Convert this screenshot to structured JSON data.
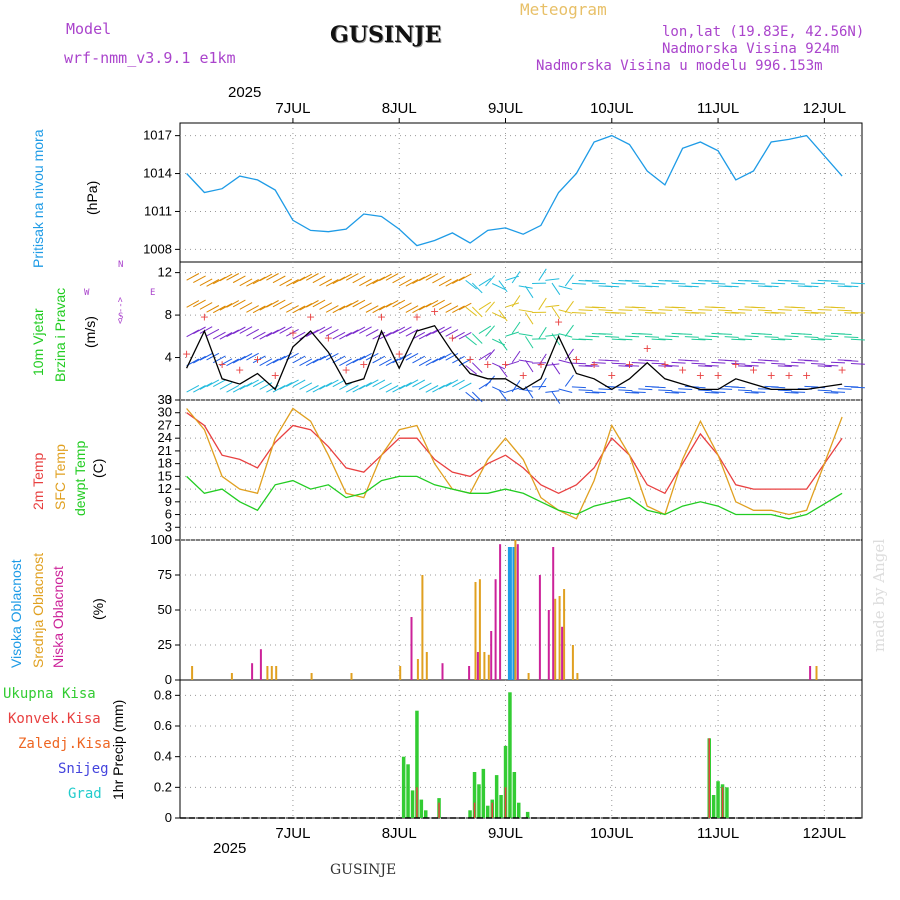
{
  "header": {
    "model_label": "Model",
    "model_name": "wrf-nmm_v3.9.1 e1km",
    "station": "GUSINJE",
    "product": "Meteogram",
    "lonlat": "lon,lat (19.83E, 42.56N)",
    "elevation": "Nadmorska Visina 924m",
    "model_elevation": "Nadmorska Visina u modelu 996.153m",
    "footer_station": "GUSINJE",
    "watermark": "made by Angel"
  },
  "colors": {
    "pressure": "#1e9be6",
    "wind_label": "#22cc22",
    "temp2m": "#e84040",
    "sfc": "#e0a020",
    "dewpt": "#22cc22",
    "high_cloud": "#1e9be6",
    "mid_cloud": "#e0a020",
    "low_cloud": "#cc2299",
    "total_precip": "#33cc33",
    "conv_precip": "#e84040",
    "freezing": "#ee6622",
    "snow": "#4444dd",
    "hail": "#22cccc",
    "compass": "#aa44cc"
  },
  "axes": {
    "year": "2025",
    "days": [
      "7JUL",
      "8JUL",
      "9JUL",
      "10JUL",
      "11JUL",
      "12JUL"
    ]
  },
  "panels": {
    "pressure": {
      "label": "Pritisak na nivou mora",
      "unit": "(hPa)"
    },
    "wind": {
      "label1": "10m Vjetar",
      "label2": "Brzina i Pravac",
      "unit": "(m/s)",
      "compass_w": "W",
      "compass_e": "E",
      "compass_top": "<--->",
      "compass_ns": "N",
      "compass_s": "S"
    },
    "temp": {
      "label1": "2m Temp",
      "label2": "SFC Temp",
      "label3": "dewpt Temp",
      "unit": "(C)"
    },
    "cloud": {
      "label1": "Visoka Oblacnost",
      "label2": "Srednja Oblacnost",
      "label3": "Niska Oblacnost",
      "unit": "(%)"
    },
    "precip": {
      "unit": "1hr Precip (mm)",
      "legend": [
        "Ukupna Kisa",
        "Konvek.Kisa",
        "Zaledj.Kisa",
        "Snijeg",
        "Grad"
      ]
    }
  },
  "chart_data": [
    {
      "type": "line",
      "title": "Pritisak na nivou mora",
      "ylabel": "(hPa)",
      "x_unit": "hours since 7JUL 00UTC",
      "ylim": [
        1007,
        1018
      ],
      "yticks": [
        1008,
        1011,
        1014,
        1017
      ],
      "series": [
        {
          "name": "Pritisak na nivou mora",
          "x": [
            -12,
            -8,
            -4,
            0,
            4,
            8,
            12,
            16,
            20,
            24,
            28,
            32,
            36,
            40,
            44,
            48,
            52,
            56,
            60,
            64,
            68,
            72,
            76,
            80,
            84,
            88,
            92,
            96,
            100,
            104,
            108,
            112,
            116,
            120,
            124,
            128,
            136
          ],
          "values": [
            1014.0,
            1012.5,
            1012.8,
            1013.8,
            1013.5,
            1012.7,
            1010.3,
            1009.5,
            1009.4,
            1009.6,
            1010.8,
            1010.6,
            1009.6,
            1008.3,
            1008.7,
            1009.3,
            1008.5,
            1009.5,
            1009.7,
            1009.2,
            1009.9,
            1012.5,
            1014.0,
            1016.5,
            1017.0,
            1016.3,
            1014.2,
            1013.1,
            1016.0,
            1016.5,
            1015.8,
            1013.5,
            1014.2,
            1016.5,
            1016.7,
            1017.0,
            1013.8
          ]
        }
      ]
    },
    {
      "type": "line",
      "title": "10m Vjetar Brzina i Pravac",
      "ylabel": "(m/s)",
      "ylim": [
        0,
        13
      ],
      "yticks": [
        0,
        4,
        8,
        12
      ],
      "series": [
        {
          "name": "Brzina",
          "x": [
            -12,
            -8,
            -4,
            0,
            4,
            8,
            12,
            16,
            20,
            24,
            28,
            32,
            36,
            40,
            44,
            48,
            52,
            56,
            60,
            64,
            68,
            72,
            76,
            80,
            84,
            88,
            92,
            96,
            100,
            104,
            108,
            112,
            116,
            120,
            124,
            128,
            136
          ],
          "values": [
            3,
            6.5,
            2,
            1.5,
            2.5,
            1,
            5,
            6.5,
            4.5,
            1.5,
            2,
            6.5,
            3,
            6.5,
            7,
            4.5,
            2.5,
            2,
            2,
            1,
            2,
            6,
            2.5,
            2,
            1,
            2,
            3.5,
            2,
            1.5,
            1,
            1,
            2,
            1.5,
            1,
            1,
            1,
            1.5
          ]
        }
      ]
    },
    {
      "type": "line",
      "title": "2m Temp / SFC Temp / dewpt Temp",
      "ylabel": "(C)",
      "ylim": [
        0,
        33
      ],
      "yticks": [
        0,
        3,
        6,
        9,
        12,
        15,
        18,
        21,
        24,
        27,
        30,
        33
      ],
      "series": [
        {
          "name": "2m Temp",
          "x": [
            -12,
            -8,
            -4,
            0,
            4,
            8,
            12,
            16,
            20,
            24,
            28,
            32,
            36,
            40,
            44,
            48,
            52,
            56,
            60,
            64,
            68,
            72,
            76,
            80,
            84,
            88,
            92,
            96,
            100,
            104,
            108,
            112,
            116,
            120,
            124,
            128,
            136
          ],
          "values": [
            30,
            27,
            20,
            19,
            17,
            23,
            27,
            26,
            22,
            17,
            16,
            20,
            24,
            24,
            19,
            16,
            15,
            18,
            20,
            17,
            13,
            11,
            13,
            17,
            24,
            20,
            13,
            11,
            18,
            25,
            20,
            13,
            12,
            12,
            12,
            12,
            24
          ]
        },
        {
          "name": "SFC Temp",
          "x": [
            -12,
            -8,
            -4,
            0,
            4,
            8,
            12,
            16,
            20,
            24,
            28,
            32,
            36,
            40,
            44,
            48,
            52,
            56,
            60,
            64,
            68,
            72,
            76,
            80,
            84,
            88,
            92,
            96,
            100,
            104,
            108,
            112,
            116,
            120,
            124,
            128,
            136
          ],
          "values": [
            31,
            26,
            15,
            12,
            11,
            24,
            31,
            28,
            20,
            11,
            10,
            20,
            26,
            27,
            18,
            12,
            11,
            19,
            24,
            19,
            10,
            7,
            5,
            14,
            27,
            20,
            8,
            6,
            19,
            28,
            20,
            9,
            7,
            7,
            6,
            7,
            29
          ]
        },
        {
          "name": "dewpt Temp",
          "x": [
            -12,
            -8,
            -4,
            0,
            4,
            8,
            12,
            16,
            20,
            24,
            28,
            32,
            36,
            40,
            44,
            48,
            52,
            56,
            60,
            64,
            68,
            72,
            76,
            80,
            84,
            88,
            92,
            96,
            100,
            104,
            108,
            112,
            116,
            120,
            124,
            128,
            136
          ],
          "values": [
            15,
            11,
            12,
            9,
            7,
            13,
            14,
            12,
            13,
            10,
            11,
            14,
            15,
            15,
            13,
            12,
            11,
            11,
            12,
            11,
            9,
            7,
            6,
            8,
            9,
            10,
            7,
            6,
            8,
            9,
            8,
            6,
            6,
            6,
            5,
            6,
            11
          ]
        }
      ]
    },
    {
      "type": "bar",
      "title": "Oblacnost",
      "ylabel": "(%)",
      "ylim": [
        0,
        100
      ],
      "yticks": [
        0,
        25,
        50,
        75,
        100
      ],
      "series": [
        {
          "name": "Visoka Oblacnost",
          "x": [
            61,
            62
          ],
          "values": [
            95,
            95
          ]
        },
        {
          "name": "Srednja Oblacnost",
          "x": [
            -11,
            -2,
            6,
            7,
            8,
            16,
            25,
            36,
            40,
            41,
            42,
            53,
            54,
            55,
            56,
            62,
            65,
            71,
            72,
            73,
            75,
            76,
            130
          ],
          "values": [
            10,
            5,
            10,
            10,
            10,
            5,
            5,
            10,
            15,
            75,
            20,
            70,
            72,
            20,
            18,
            100,
            5,
            58,
            60,
            65,
            25,
            5,
            10
          ]
        },
        {
          "name": "Niska Oblacnost",
          "x": [
            3,
            5,
            39,
            46,
            52,
            54,
            57,
            58,
            59,
            63,
            68,
            70,
            71,
            73,
            129
          ],
          "values": [
            12,
            22,
            45,
            12,
            10,
            20,
            35,
            72,
            97,
            97,
            75,
            50,
            95,
            38,
            10
          ]
        }
      ]
    },
    {
      "type": "bar",
      "title": "1hr Precip",
      "ylabel": "1hr Precip (mm)",
      "ylim": [
        0,
        0.9
      ],
      "yticks": [
        0,
        0.2,
        0.4,
        0.6,
        0.8
      ],
      "series": [
        {
          "name": "Ukupna Kisa",
          "x": [
            37,
            38,
            39,
            40,
            41,
            42,
            45,
            52,
            53,
            54,
            55,
            56,
            57,
            58,
            59,
            60,
            61,
            62,
            63,
            65,
            106,
            107,
            108,
            109,
            110
          ],
          "values": [
            0.4,
            0.35,
            0.18,
            0.7,
            0.12,
            0.05,
            0.13,
            0.05,
            0.3,
            0.22,
            0.32,
            0.08,
            0.12,
            0.28,
            0.15,
            0.47,
            0.82,
            0.3,
            0.1,
            0.04,
            0.52,
            0.15,
            0.24,
            0.22,
            0.2
          ]
        },
        {
          "name": "Konvek.Kisa",
          "x": [
            40,
            45,
            53,
            57,
            60,
            106,
            109
          ],
          "values": [
            0.2,
            0.1,
            0.1,
            0.1,
            0.2,
            0.52,
            0.2
          ]
        }
      ]
    }
  ]
}
